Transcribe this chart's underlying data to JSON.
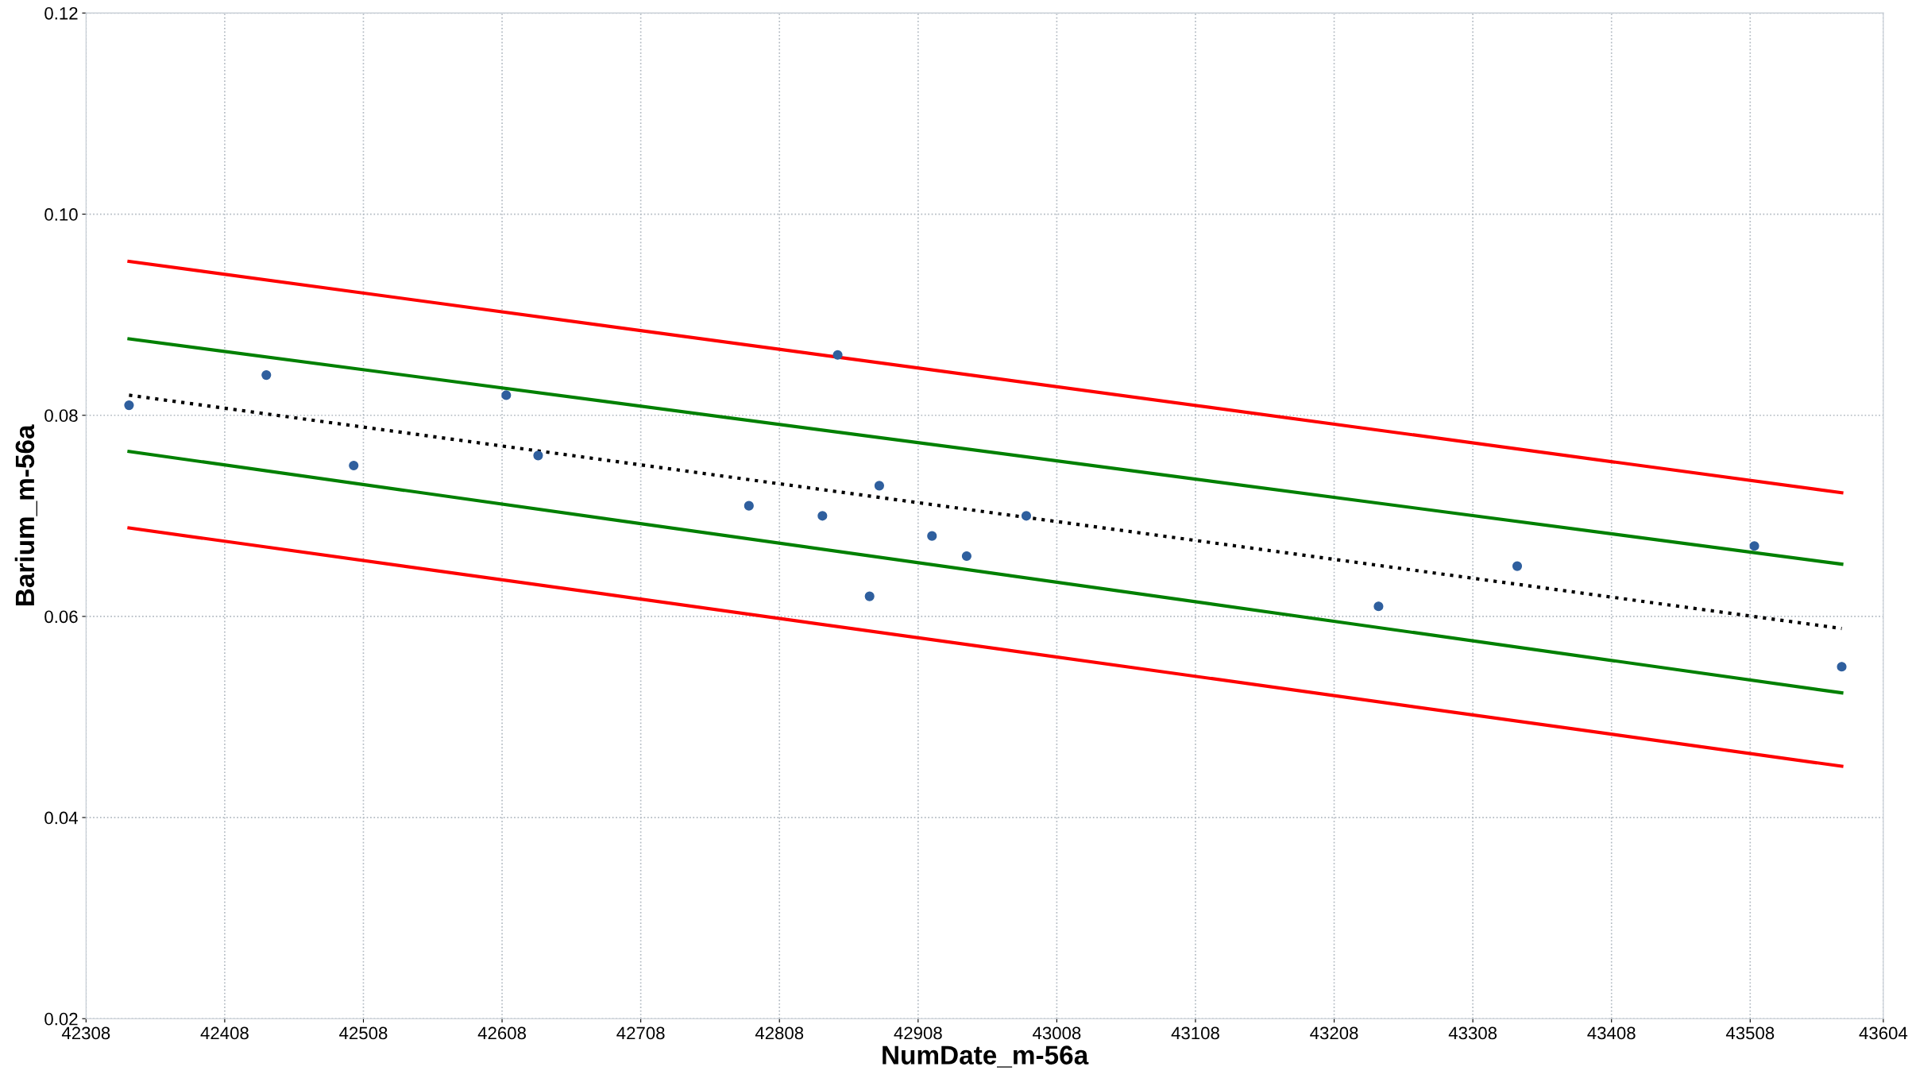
{
  "chart_data": {
    "type": "scatter",
    "xlabel": "NumDate_m-56a",
    "ylabel": "Barium_m-56a",
    "marker": "circle",
    "grid": true,
    "xlim": [
      42308,
      43604
    ],
    "ylim": [
      0.02,
      0.12
    ],
    "xticks": [
      42308,
      42408,
      42508,
      42608,
      42708,
      42808,
      42908,
      43008,
      43108,
      43208,
      43308,
      43408,
      43508,
      43604
    ],
    "yticks": [
      {
        "value": 0.02,
        "label": "0.02"
      },
      {
        "value": 0.04,
        "label": "0.04"
      },
      {
        "value": 0.06,
        "label": "0.06"
      },
      {
        "value": 0.08,
        "label": "0.08"
      },
      {
        "value": 0.1,
        "label": "0.10"
      },
      {
        "value": 0.12,
        "label": "0.12"
      }
    ],
    "series": [
      {
        "type": "line",
        "line_style": "solid",
        "marker": "none",
        "color": "#ff0000",
        "x": [
          42339,
          43574
        ],
        "values": [
          0.0953,
          0.0723
        ]
      },
      {
        "type": "line",
        "line_style": "solid",
        "marker": "none",
        "color": "#008000",
        "x": [
          42339,
          43574
        ],
        "values": [
          0.0876,
          0.0652
        ]
      },
      {
        "type": "line",
        "line_style": "dotted",
        "marker": "none",
        "color": "#000000",
        "x": [
          42339,
          43574
        ],
        "values": [
          0.082,
          0.0588
        ]
      },
      {
        "type": "line",
        "line_style": "solid",
        "marker": "none",
        "color": "#008000",
        "x": [
          42339,
          43574
        ],
        "values": [
          0.0764,
          0.0524
        ]
      },
      {
        "type": "line",
        "line_style": "solid",
        "marker": "none",
        "color": "#ff0000",
        "x": [
          42339,
          43574
        ],
        "values": [
          0.0688,
          0.0451
        ]
      },
      {
        "color": "#2f5f9e",
        "x": [
          42339,
          42438,
          42501,
          42611,
          42634,
          42786,
          42839,
          42850,
          42873,
          42880,
          42918,
          42943,
          42986,
          43240,
          43340,
          43511,
          43574
        ],
        "values": [
          0.081,
          0.084,
          0.075,
          0.082,
          0.076,
          0.071,
          0.07,
          0.086,
          0.062,
          0.073,
          0.068,
          0.066,
          0.07,
          0.061,
          0.065,
          0.067,
          0.055
        ]
      }
    ]
  }
}
